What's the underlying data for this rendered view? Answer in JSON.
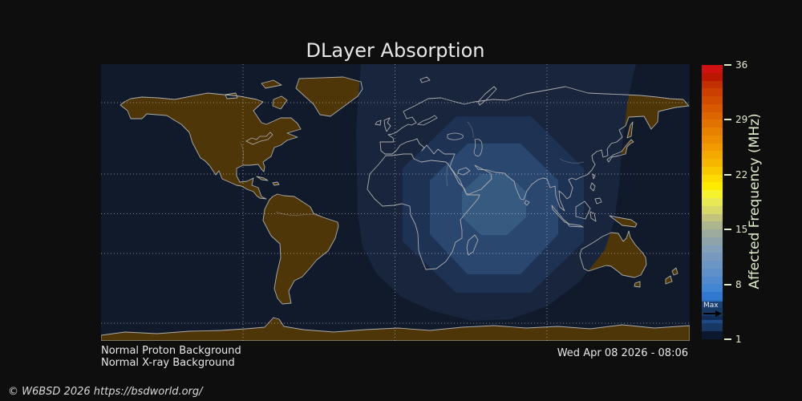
{
  "title": "DLayer Absorption",
  "status": {
    "proton": "Normal Proton Background",
    "xray": "Normal X-ray Background"
  },
  "timestamp": "Wed Apr 08 2026 - 08:06",
  "copyright": "© W6BSD 2026 https://bsdworld.org/",
  "colorbar": {
    "axis_label": "Affected Frequency (MHz)",
    "ticks": [
      "36",
      "29",
      "22",
      "15",
      "8",
      "1"
    ],
    "max_label": "Max",
    "segment_colors": [
      "#cf1211",
      "#bb1600",
      "#c33000",
      "#cb3f00",
      "#d24c00",
      "#d85900",
      "#de6600",
      "#e37300",
      "#e88000",
      "#ec8d00",
      "#f09a00",
      "#f3a800",
      "#f6b600",
      "#f8c800",
      "#fbdb00",
      "#fee900",
      "#f6f22e",
      "#e8e855",
      "#d8d868",
      "#c2c47e",
      "#adb58e",
      "#9cab9e",
      "#8fa3ab",
      "#83a0b8",
      "#7699bd",
      "#6b95c4",
      "#5f90c9",
      "#528bcd",
      "#4285d2",
      "#3178d0",
      "#2b6cb8",
      "#26619f",
      "#1d4a85",
      "#193763",
      "#0b1830"
    ]
  },
  "colors": {
    "page_bg": "#0e0e0e",
    "ocean_night": "#111a2b",
    "band_outer": "#18253d",
    "band_mid1": "#1e3254",
    "band_mid2": "#2a4770",
    "band_inner": "#365a80",
    "land": "#4e3608",
    "coastline": "#adadad",
    "gridline": "#e8e8e8",
    "label_text": "#dfeccb",
    "arrow": "#000000"
  },
  "chart_data": {
    "type": "heatmap",
    "title": "DLayer Absorption",
    "colorbar": {
      "label": "Affected Frequency (MHz)",
      "ticks": [
        36,
        29,
        22,
        15,
        8,
        1
      ],
      "range": [
        1,
        36
      ],
      "max_marker_value_estimate": 4
    },
    "absorption_center_region": "Indian Ocean / Arabian Sea (daylit hemisphere)",
    "annotations": [
      "Normal Proton Background",
      "Normal X-ray Background",
      "Wed Apr 08 2026 - 08:06"
    ]
  }
}
